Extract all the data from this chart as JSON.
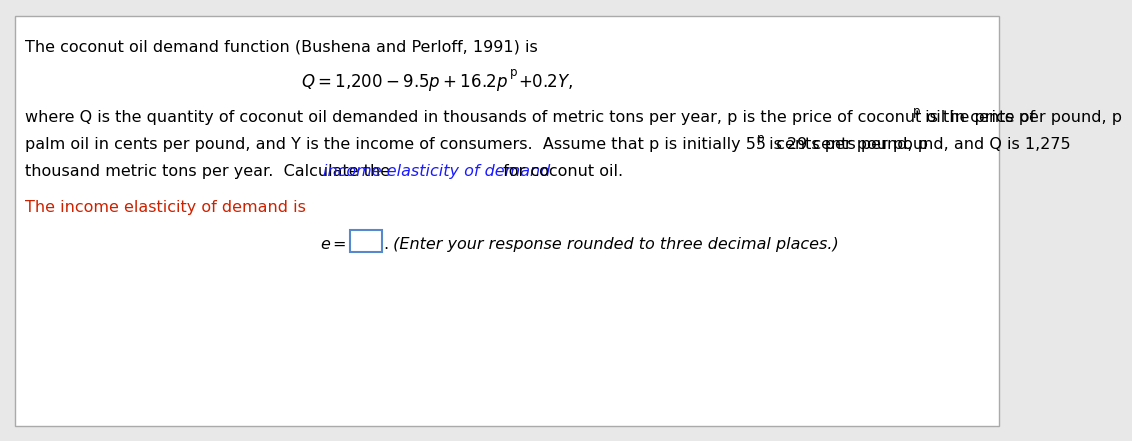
{
  "bg_color": "#e8e8e8",
  "inner_bg": "#ffffff",
  "border_color": "#aaaaaa",
  "text_color": "#000000",
  "link_color": "#1a1aff",
  "income_color": "#cc2200",
  "box_border": "#5588cc",
  "font_size": 11.5,
  "line1": "The coconut oil demand function (Bushena and Perloff, 1991) is",
  "line3_before_sub": "where Q is the quantity of coconut oil demanded in thousands of metric tons per year, p is the price of coconut oil in cents per pound, p",
  "line3_sub1": "p",
  "line3_after_sub": " is the price of",
  "line4_before_sub": "palm oil in cents per pound, and Y is the income of consumers.  Assume that p is initially 55  cents per pound, p",
  "line4_sub": "p",
  "line4_after_sub": " is 29 cents per pound, and Q is 1,275",
  "line5_part1": "thousand metric tons per year.  Calculate the ",
  "line5_link": "income elasticity of demand",
  "line5_part2": " for coconut oil.",
  "line6": "The income elasticity of demand is",
  "line7_label": "e =",
  "line7_hint": " (Enter your response rounded to three decimal places.)"
}
